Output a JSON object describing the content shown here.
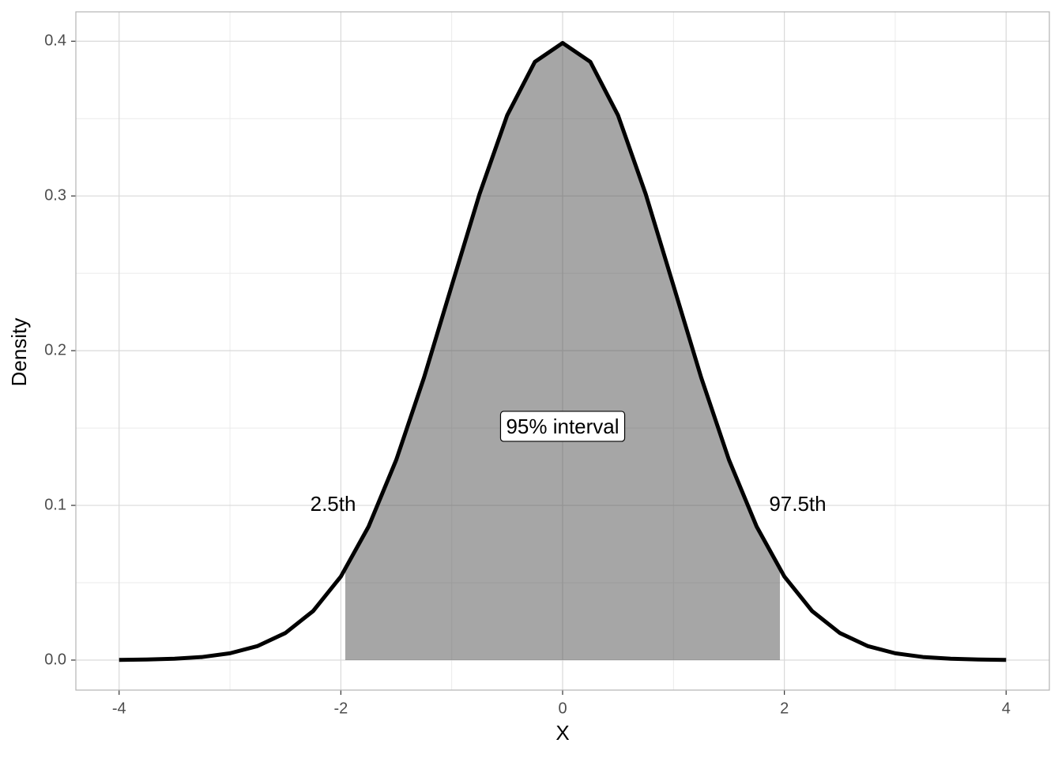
{
  "chart_data": {
    "type": "area-line",
    "x_label": "X",
    "y_label": "Density",
    "xlim": [
      -4.39,
      4.39
    ],
    "ylim": [
      -0.0194,
      0.419
    ],
    "xticks": [
      -4,
      -2,
      0,
      2,
      4
    ],
    "yticks": [
      {
        "value": 0,
        "label": "0.0"
      },
      0.1,
      0.2,
      0.3,
      0.4
    ],
    "x_minor_grid": [
      -3,
      -1,
      1,
      3
    ],
    "y_minor_grid": [
      0.05,
      0.15,
      0.25,
      0.35
    ],
    "grid": true,
    "series": [
      {
        "kind": "area",
        "color": "#4d4d4d",
        "opacity": 0.5,
        "x": [
          -1.96,
          -1.75,
          -1.5,
          -1.25,
          -1,
          -0.75,
          -0.5,
          -0.25,
          0,
          0.25,
          0.5,
          0.75,
          1,
          1.25,
          1.5,
          1.75,
          1.96
        ],
        "values": [
          0.0584,
          0.0863,
          0.1295,
          0.1826,
          0.242,
          0.3011,
          0.3521,
          0.3867,
          0.3989,
          0.3867,
          0.3521,
          0.3011,
          0.242,
          0.1826,
          0.1295,
          0.0863,
          0.0584
        ]
      },
      {
        "kind": "line",
        "color": "#000000",
        "x": [
          -4,
          -3.75,
          -3.5,
          -3.25,
          -3,
          -2.75,
          -2.5,
          -2.25,
          -2,
          -1.75,
          -1.5,
          -1.25,
          -1,
          -0.75,
          -0.5,
          -0.25,
          0,
          0.25,
          0.5,
          0.75,
          1,
          1.25,
          1.5,
          1.75,
          2,
          2.25,
          2.5,
          2.75,
          3,
          3.25,
          3.5,
          3.75,
          4
        ],
        "values": [
          0.0001,
          0.0004,
          0.0009,
          0.002,
          0.0044,
          0.0091,
          0.0175,
          0.0317,
          0.054,
          0.0863,
          0.1295,
          0.1826,
          0.242,
          0.3011,
          0.3521,
          0.3867,
          0.3989,
          0.3867,
          0.3521,
          0.3011,
          0.242,
          0.1826,
          0.1295,
          0.0863,
          0.054,
          0.0317,
          0.0175,
          0.0091,
          0.0044,
          0.002,
          0.0009,
          0.0004,
          0.0001
        ]
      }
    ],
    "annotations": [
      {
        "text": "2.5th",
        "x": -2.07,
        "y": 0.1
      },
      {
        "text": "97.5th",
        "x": 2.12,
        "y": 0.1
      },
      {
        "text": "95% interval",
        "x": 0,
        "y": 0.15,
        "boxed": true
      }
    ]
  }
}
